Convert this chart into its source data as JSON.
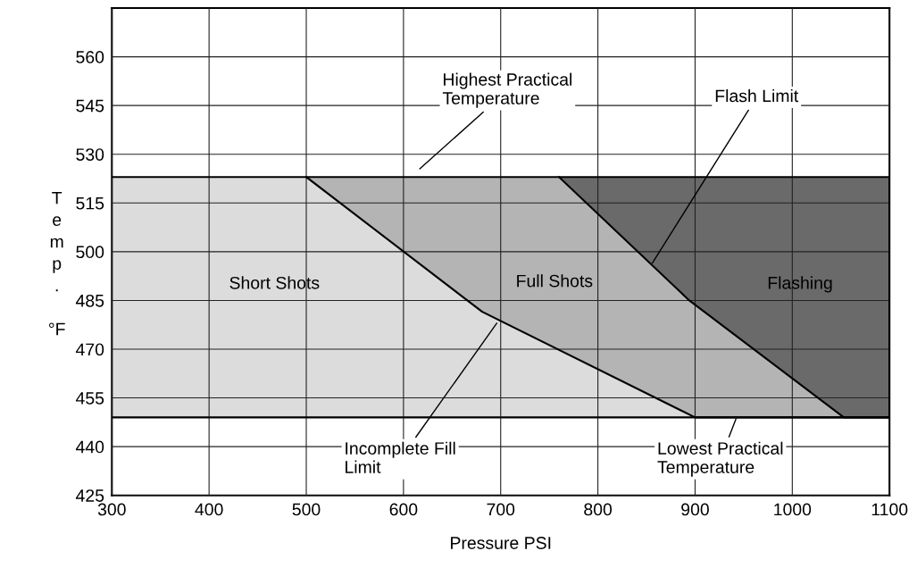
{
  "chart_data": {
    "type": "area",
    "xlabel": "Pressure PSI",
    "ylabel": "Temp. °F",
    "xlim": [
      300,
      1100
    ],
    "xticks": [
      300,
      400,
      500,
      600,
      700,
      800,
      900,
      1000,
      1100
    ],
    "ylim": [
      425,
      575
    ],
    "yticks": [
      425,
      440,
      455,
      470,
      485,
      500,
      515,
      530,
      545,
      560
    ],
    "grid": true,
    "bands": [
      {
        "axis": "y",
        "from": 449,
        "to": 523,
        "color": "#dcdcdc"
      }
    ],
    "ref_lines": [
      {
        "axis": "y",
        "value": 523
      },
      {
        "axis": "y",
        "value": 449
      }
    ],
    "series": [
      {
        "color": "#b4b4b4",
        "x": [
          500,
          681,
          900,
          1100,
          1100
        ],
        "values": [
          523,
          481.5,
          449,
          449,
          523
        ]
      },
      {
        "color": "#6a6a6a",
        "x": [
          760,
          894,
          1053,
          1100,
          1100
        ],
        "values": [
          523,
          485,
          449,
          449,
          523
        ]
      }
    ],
    "annotations": [
      "Highest Practical\nTemperature",
      {
        "text": "Flash Limit",
        "x": 856,
        "y": 496.5
      },
      {
        "text": "Incomplete Fill\nLimit",
        "x": 696,
        "y": 478
      },
      {
        "text": "Lowest Practical\nTemperature",
        "x": 942,
        "y": 448.5
      },
      "Short Shots",
      "Full Shots",
      "Flashing"
    ]
  }
}
